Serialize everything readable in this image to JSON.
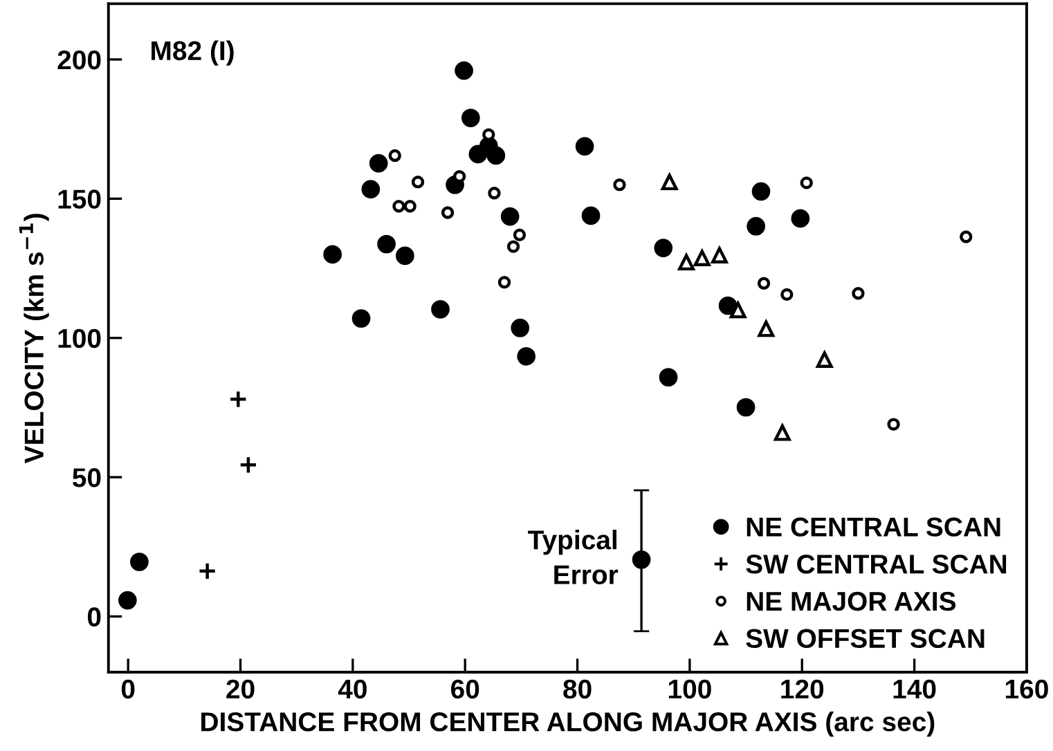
{
  "chart_data": {
    "type": "scatter",
    "title": "M82 (I)",
    "xlabel": "DISTANCE FROM CENTER ALONG MAJOR AXIS (arc sec)",
    "ylabel": "VELOCITY (km s$^{−1}$)",
    "xlim": [
      -3.5,
      160
    ],
    "ylim": [
      -20,
      220
    ],
    "xticks": [
      0,
      20,
      40,
      60,
      80,
      100,
      120,
      140,
      160
    ],
    "yticks": [
      0,
      50,
      100,
      150,
      200
    ],
    "grid": false,
    "legend": "bottom right",
    "annotations": [
      {
        "text": "Typical\nError",
        "x": 91.4,
        "y": 20.4
      }
    ],
    "series": [
      {
        "name": "NE CENTRAL SCAN",
        "color": "#000000",
        "marker": "circle",
        "x": [
          -0.1,
          2,
          36.4,
          41.5,
          43.2,
          44.6,
          46,
          49.3,
          55.6,
          58.2,
          59.8,
          61,
          62.3,
          64.2,
          65.5,
          68,
          69.8,
          70.9,
          81.3,
          82.4,
          95.3,
          96.2,
          106.8,
          110,
          111.8,
          112.7,
          119.7
        ],
        "values": [
          5.8,
          19.6,
          130,
          107,
          153.4,
          162.7,
          133.7,
          129.5,
          110.3,
          155,
          196,
          179,
          166,
          169,
          165.5,
          143.6,
          103.6,
          93.4,
          168.8,
          143.9,
          132.3,
          85.9,
          111.6,
          75.1,
          140.1,
          152.6,
          142.9
        ]
      },
      {
        "name": "SW CENTRAL SCAN",
        "color": "#000000",
        "marker": "cross",
        "x": [
          14.1,
          19.6,
          21.4
        ],
        "values": [
          16.3,
          78,
          54.4
        ]
      },
      {
        "name": "NE MAJOR AXIS",
        "color": "#000000",
        "marker": "circle",
        "x": [
          47.5,
          48.2,
          50.2,
          51.6,
          56.9,
          59,
          64.2,
          65.2,
          67,
          68.6,
          69.7,
          87.5,
          113.2,
          117.3,
          120.8,
          130,
          136.3,
          149.2
        ],
        "values": [
          165.5,
          147.3,
          147.3,
          156,
          145,
          158,
          173,
          152,
          120,
          132.8,
          137,
          155,
          119.6,
          115.6,
          155.7,
          116,
          69,
          136.3
        ]
      },
      {
        "name": "SW OFFSET SCAN",
        "color": "#000000",
        "marker": "triangle",
        "x": [
          96.4,
          99.4,
          102.2,
          105.3,
          108.6,
          113.6,
          116.5,
          124
        ],
        "values": [
          156,
          127.2,
          128.7,
          129.7,
          110,
          103.3,
          66,
          92.2
        ]
      },
      {
        "color": "#000000",
        "marker": "circle",
        "x": [
          91.4
        ],
        "values": [
          20.4
        ],
        "errors": [
          [
            -5.3,
            45.3
          ]
        ]
      }
    ]
  }
}
